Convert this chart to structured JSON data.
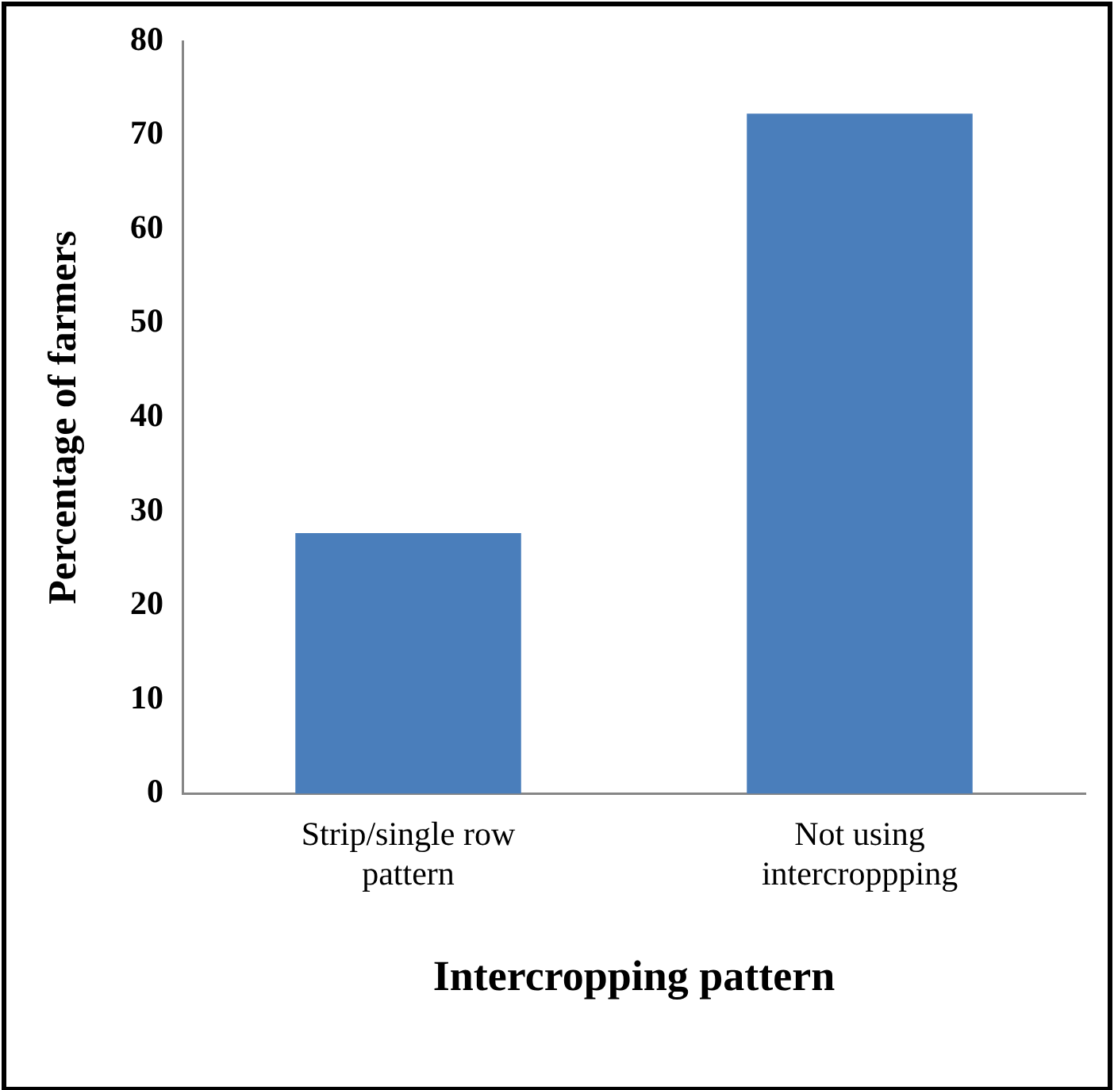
{
  "chart_data": {
    "type": "bar",
    "xlabel": "Intercropping pattern",
    "ylabel": "Percentage of farmers",
    "categories": [
      "Strip/single row pattern",
      "Not using intercroppping"
    ],
    "values": [
      27.7,
      72.3
    ],
    "color": "#4a7ebb",
    "ylim": [
      0,
      80
    ],
    "yticks": [
      0,
      10,
      20,
      30,
      40,
      50,
      60,
      70,
      80
    ],
    "grid": false,
    "legend": false
  }
}
